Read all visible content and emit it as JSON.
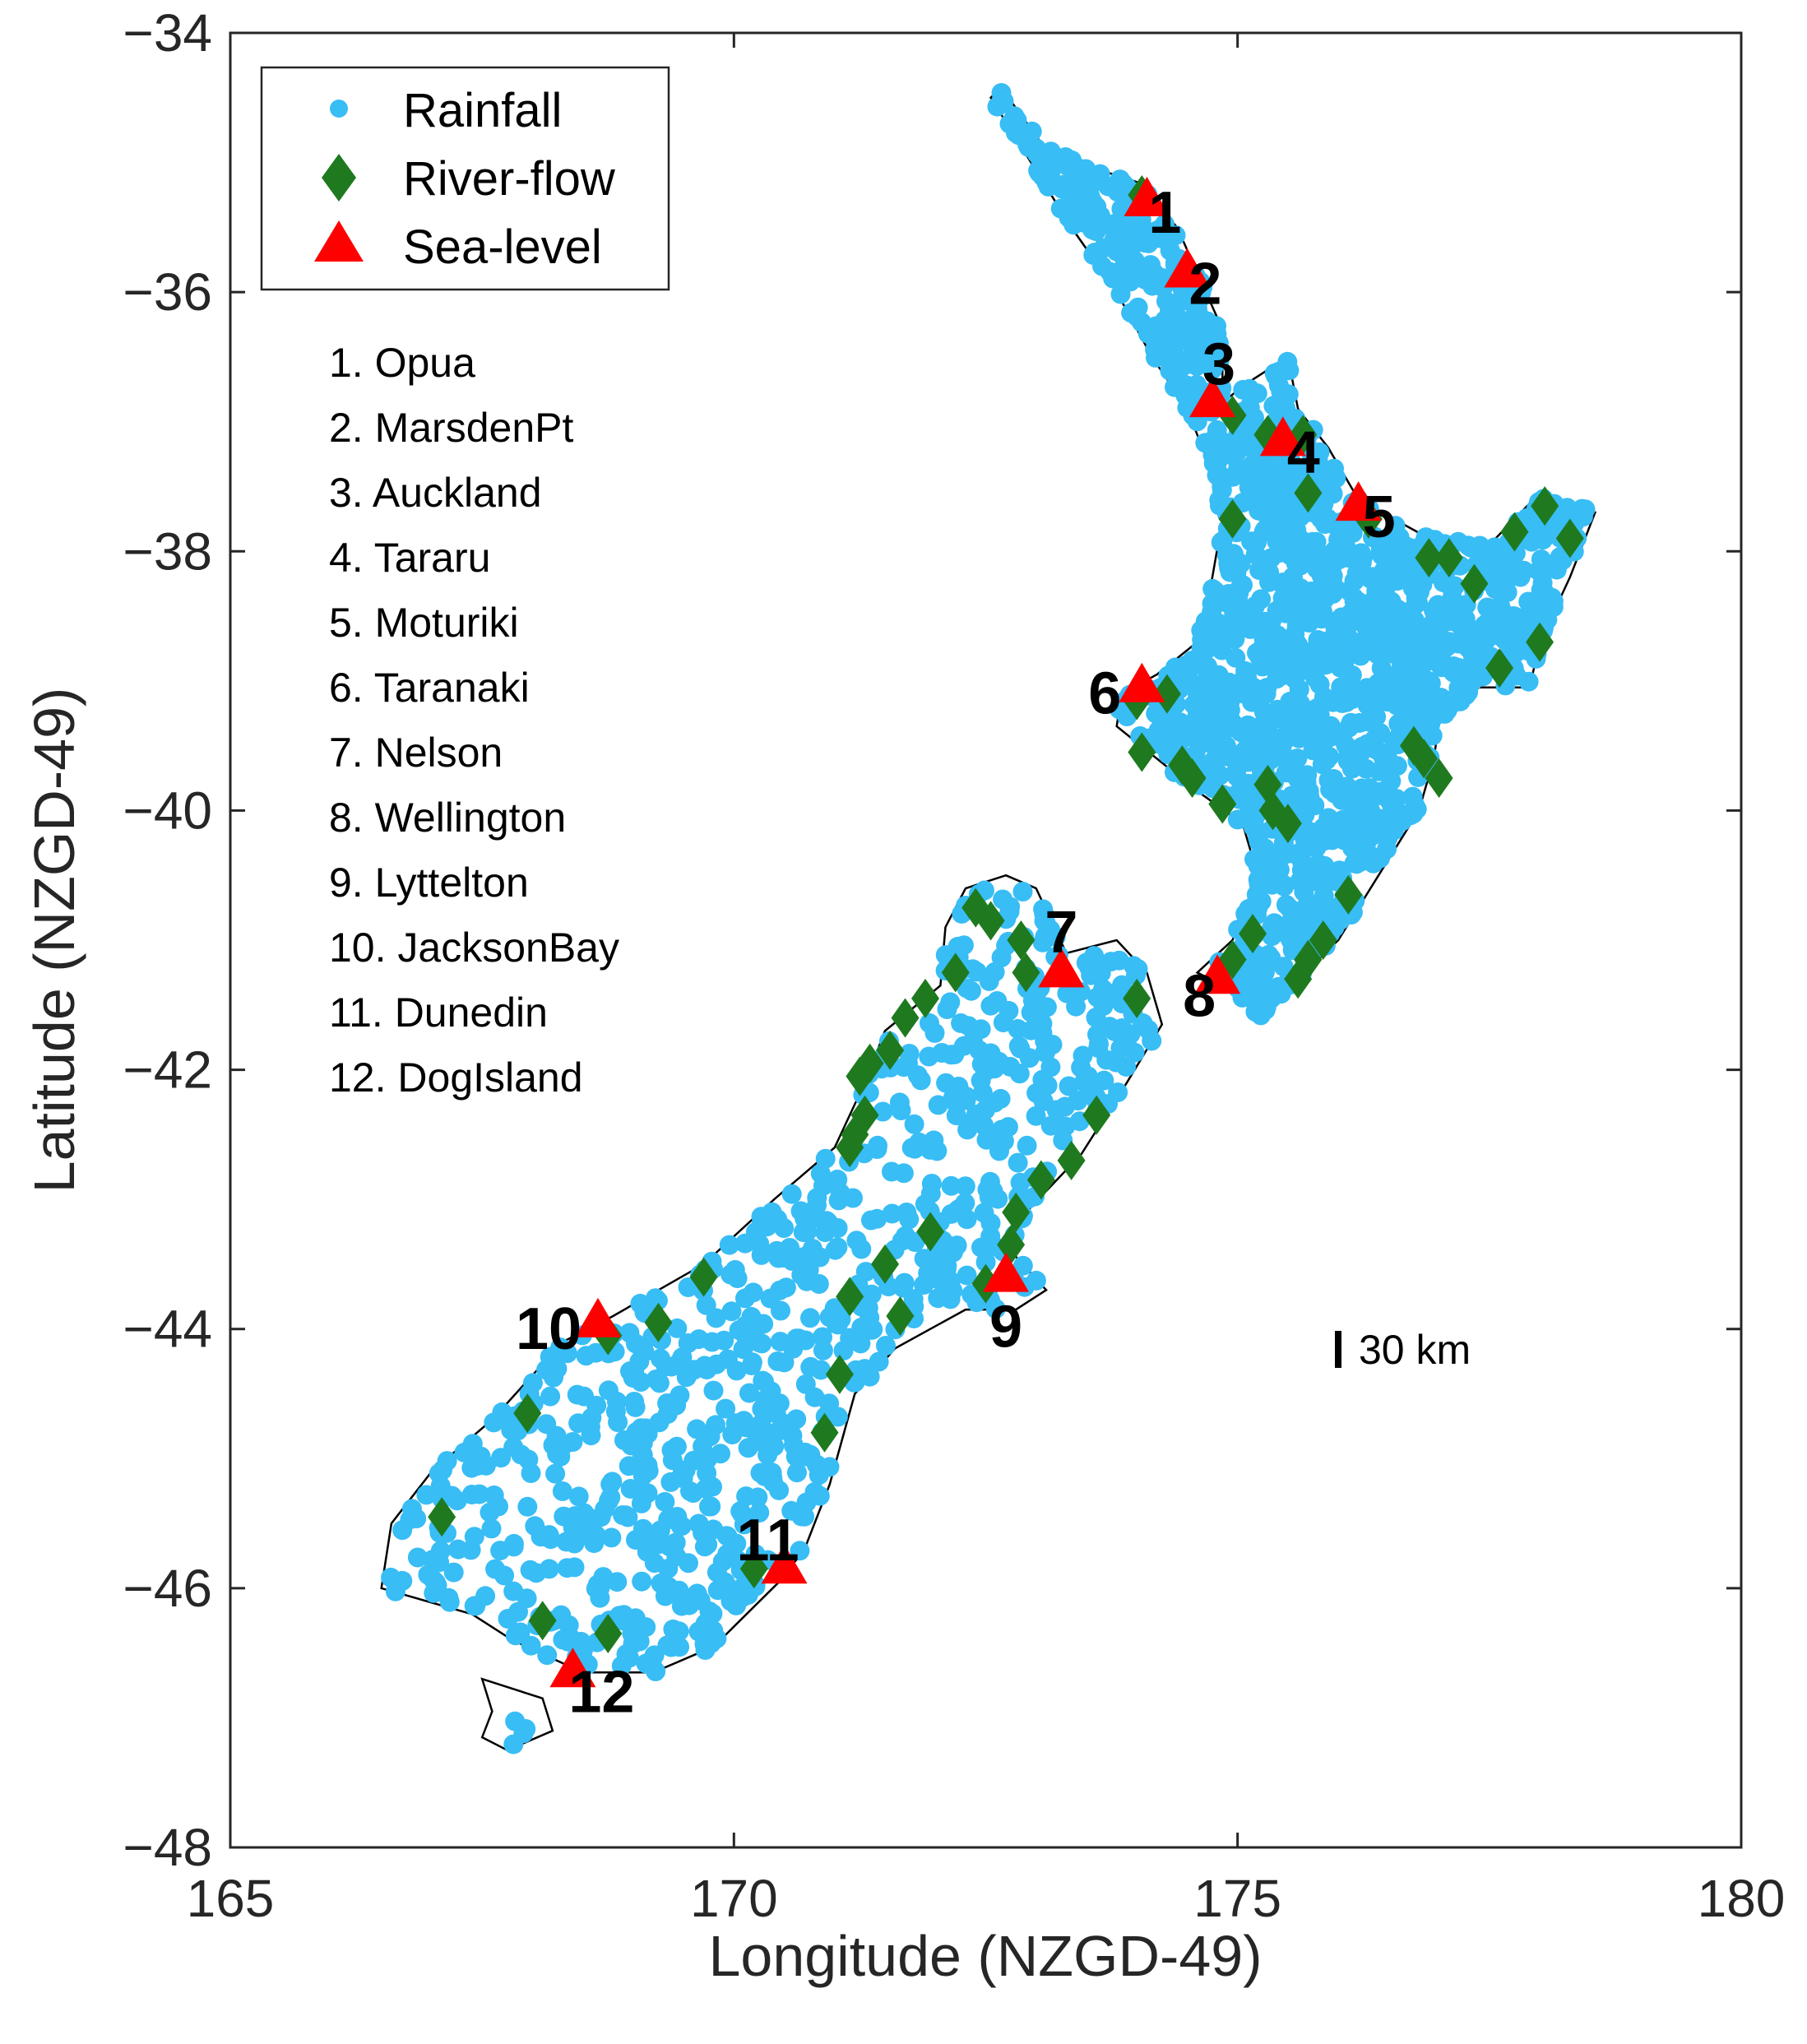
{
  "chart_data": {
    "type": "scatter",
    "title": "",
    "xlabel": "Longitude (NZGD-49)",
    "ylabel": "Latitude (NZGD-49)",
    "xlim": [
      165,
      180
    ],
    "ylim": [
      -48,
      -34
    ],
    "xticks": [
      "165",
      "170",
      "175",
      "180"
    ],
    "yticks": [
      "−34",
      "−36",
      "−38",
      "−40",
      "−42",
      "−44",
      "−46",
      "−48"
    ],
    "grid": false,
    "legend_placement": "top-left",
    "legend": [
      {
        "name": "Rainfall",
        "marker": "circle",
        "color": "#38bdf5"
      },
      {
        "name": "River-flow",
        "marker": "diamond",
        "color": "#1f7a1f"
      },
      {
        "name": "Sea-level",
        "marker": "triangle",
        "color": "#ff0000"
      }
    ],
    "sea_level_stations": [
      {
        "num": "1",
        "name": "Opua",
        "lon": 174.1,
        "lat": -35.3
      },
      {
        "num": "2",
        "name": "MarsdenPt",
        "lon": 174.5,
        "lat": -35.85
      },
      {
        "num": "3",
        "name": "Auckland",
        "lon": 174.75,
        "lat": -36.85
      },
      {
        "num": "4",
        "name": "Tararu",
        "lon": 175.45,
        "lat": -37.15
      },
      {
        "num": "5",
        "name": "Moturiki",
        "lon": 176.2,
        "lat": -37.65
      },
      {
        "num": "6",
        "name": "Taranaki",
        "lon": 174.05,
        "lat": -39.05
      },
      {
        "num": "7",
        "name": "Nelson",
        "lon": 173.25,
        "lat": -41.25
      },
      {
        "num": "8",
        "name": "Wellington",
        "lon": 174.8,
        "lat": -41.3
      },
      {
        "num": "9",
        "name": "Lyttelton",
        "lon": 172.7,
        "lat": -43.6
      },
      {
        "num": "10",
        "name": "JacksonBay",
        "lon": 168.65,
        "lat": -43.95
      },
      {
        "num": "11",
        "name": "Dunedin",
        "lon": 170.5,
        "lat": -45.85
      },
      {
        "num": "12",
        "name": "DogIsland",
        "lon": 168.4,
        "lat": -46.65
      }
    ],
    "river_flow": [
      [
        174.05,
        -35.25
      ],
      [
        174.95,
        -36.95
      ],
      [
        175.3,
        -37.1
      ],
      [
        175.65,
        -37.1
      ],
      [
        175.7,
        -37.55
      ],
      [
        174.95,
        -37.75
      ],
      [
        176.3,
        -37.75
      ],
      [
        176.9,
        -38.05
      ],
      [
        177.1,
        -38.05
      ],
      [
        177.35,
        -38.25
      ],
      [
        177.75,
        -37.85
      ],
      [
        178.05,
        -37.65
      ],
      [
        178.3,
        -37.9
      ],
      [
        178.0,
        -38.7
      ],
      [
        177.6,
        -38.9
      ],
      [
        174.3,
        -39.1
      ],
      [
        174.0,
        -39.15
      ],
      [
        174.05,
        -39.55
      ],
      [
        174.45,
        -39.65
      ],
      [
        174.55,
        -39.75
      ],
      [
        174.85,
        -39.95
      ],
      [
        175.3,
        -39.8
      ],
      [
        175.35,
        -40.0
      ],
      [
        175.5,
        -40.1
      ],
      [
        176.75,
        -39.5
      ],
      [
        176.85,
        -39.6
      ],
      [
        177.0,
        -39.75
      ],
      [
        176.1,
        -40.65
      ],
      [
        175.85,
        -41.0
      ],
      [
        175.7,
        -41.15
      ],
      [
        175.6,
        -41.3
      ],
      [
        175.15,
        -40.95
      ],
      [
        174.95,
        -41.15
      ],
      [
        172.4,
        -40.75
      ],
      [
        172.55,
        -40.85
      ],
      [
        172.85,
        -41.0
      ],
      [
        172.9,
        -41.25
      ],
      [
        172.2,
        -41.25
      ],
      [
        171.9,
        -41.45
      ],
      [
        171.7,
        -41.6
      ],
      [
        171.55,
        -41.85
      ],
      [
        171.35,
        -41.95
      ],
      [
        171.25,
        -42.05
      ],
      [
        171.3,
        -42.35
      ],
      [
        171.2,
        -42.5
      ],
      [
        171.15,
        -42.6
      ],
      [
        174.0,
        -41.45
      ],
      [
        173.6,
        -42.35
      ],
      [
        173.35,
        -42.7
      ],
      [
        173.05,
        -42.85
      ],
      [
        172.8,
        -43.1
      ],
      [
        172.75,
        -43.35
      ],
      [
        172.5,
        -43.65
      ],
      [
        171.95,
        -43.25
      ],
      [
        171.5,
        -43.5
      ],
      [
        171.15,
        -43.75
      ],
      [
        171.65,
        -43.9
      ],
      [
        169.7,
        -43.6
      ],
      [
        169.25,
        -43.95
      ],
      [
        168.75,
        -44.05
      ],
      [
        167.95,
        -44.65
      ],
      [
        171.05,
        -44.35
      ],
      [
        170.9,
        -44.8
      ],
      [
        167.1,
        -45.45
      ],
      [
        168.1,
        -46.25
      ],
      [
        168.75,
        -46.35
      ],
      [
        170.2,
        -45.85
      ]
    ]
  },
  "station_list": [
    "1. Opua",
    "2. MarsdenPt",
    "3. Auckland",
    "4. Tararu",
    "5. Moturiki",
    "6. Taranaki",
    "7. Nelson",
    "8. Wellington",
    "9. Lyttelton",
    "10. JacksonBay",
    "11. Dunedin",
    "12. DogIsland"
  ],
  "scale_bar": {
    "label": "30 km"
  }
}
